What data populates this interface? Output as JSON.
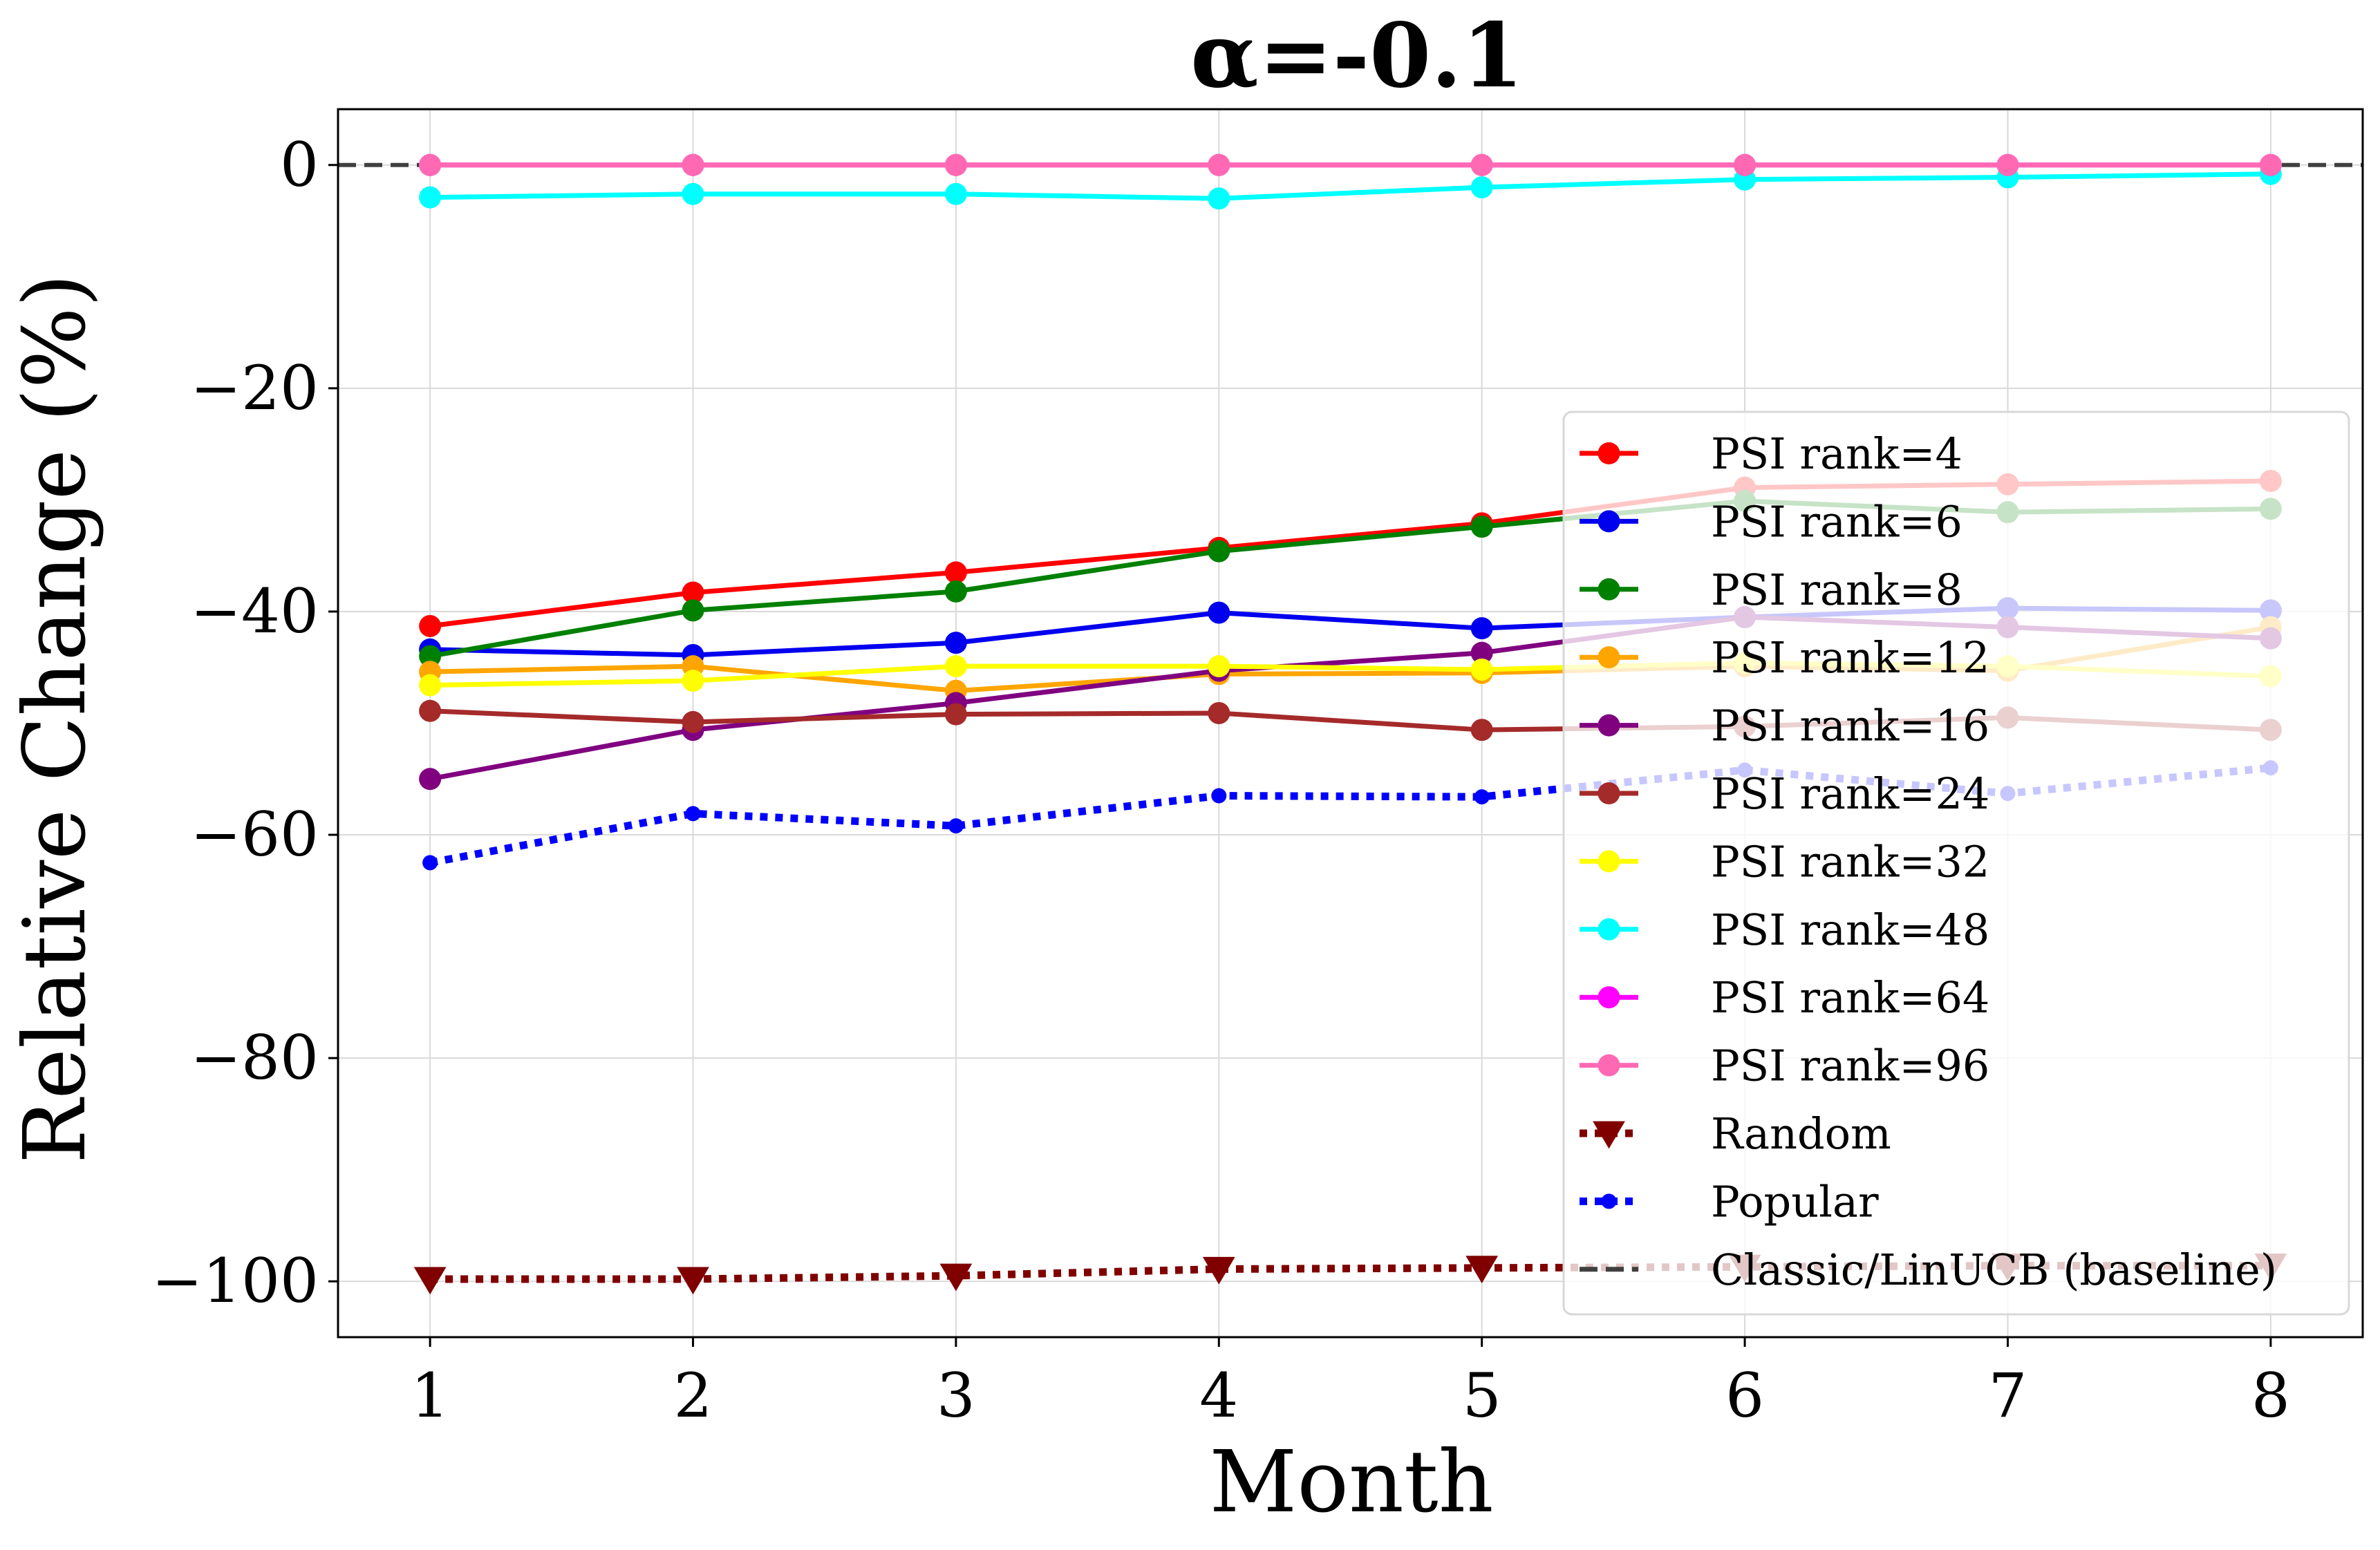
{
  "chart_data": {
    "type": "line",
    "title": "α=-0.1",
    "xlabel": "Month",
    "ylabel": "Relative Change (%)",
    "x": [
      1,
      2,
      3,
      4,
      5,
      6,
      7,
      8
    ],
    "xlim": [
      0.65,
      8.35
    ],
    "ylim": [
      -105,
      5
    ],
    "yticks": [
      0,
      -20,
      -40,
      -60,
      -80,
      -100
    ],
    "yticklabels": [
      "0",
      "−20",
      "−40",
      "−60",
      "−80",
      "−100"
    ],
    "grid": true,
    "legend_position": "lower-right",
    "series": [
      {
        "name": "PSI rank=4",
        "color": "#ff0000",
        "style": "solid",
        "marker": "circle",
        "values": [
          -41.3,
          -38.3,
          -36.5,
          -34.3,
          -32.1,
          -28.9,
          -28.6,
          -28.3
        ]
      },
      {
        "name": "PSI rank=6",
        "color": "#0000ee",
        "style": "solid",
        "marker": "circle",
        "values": [
          -43.4,
          -43.9,
          -42.8,
          -40.1,
          -41.5,
          -40.5,
          -39.7,
          -39.9
        ]
      },
      {
        "name": "PSI rank=8",
        "color": "#008000",
        "style": "solid",
        "marker": "circle",
        "values": [
          -44.0,
          -39.9,
          -38.2,
          -34.6,
          -32.4,
          -30.1,
          -31.1,
          -30.8
        ]
      },
      {
        "name": "PSI rank=12",
        "color": "#ffa500",
        "style": "solid",
        "marker": "circle",
        "values": [
          -45.4,
          -44.9,
          -47.1,
          -45.6,
          -45.5,
          -44.9,
          -45.3,
          -41.4
        ]
      },
      {
        "name": "PSI rank=16",
        "color": "#800080",
        "style": "solid",
        "marker": "circle",
        "values": [
          -55.0,
          -50.6,
          -48.2,
          -45.3,
          -43.7,
          -40.5,
          -41.4,
          -42.4
        ]
      },
      {
        "name": "PSI rank=24",
        "color": "#a52a2a",
        "style": "solid",
        "marker": "circle",
        "values": [
          -48.9,
          -49.9,
          -49.2,
          -49.1,
          -50.6,
          -50.3,
          -49.5,
          -50.6
        ]
      },
      {
        "name": "PSI rank=32",
        "color": "#ffff00",
        "style": "solid",
        "marker": "circle",
        "values": [
          -46.6,
          -46.2,
          -44.9,
          -44.9,
          -45.2,
          -44.6,
          -44.9,
          -45.8
        ]
      },
      {
        "name": "PSI rank=48",
        "color": "#00ffff",
        "style": "solid",
        "marker": "circle",
        "values": [
          -2.9,
          -2.6,
          -2.6,
          -3.0,
          -2.0,
          -1.3,
          -1.1,
          -0.8
        ]
      },
      {
        "name": "PSI rank=64",
        "color": "#ff00ff",
        "style": "solid",
        "marker": "circle",
        "values": [
          0,
          0,
          0,
          0,
          0,
          0,
          0,
          0
        ]
      },
      {
        "name": "PSI rank=96",
        "color": "#ff69b4",
        "style": "solid",
        "marker": "circle",
        "values": [
          0,
          0,
          0,
          0,
          0,
          0,
          0,
          0
        ]
      },
      {
        "name": "Random",
        "color": "#800000",
        "style": "dotted",
        "marker": "triangle",
        "values": [
          -99.8,
          -99.8,
          -99.5,
          -98.9,
          -98.8,
          -98.7,
          -98.6,
          -98.6
        ]
      },
      {
        "name": "Popular",
        "color": "#0000ff",
        "style": "dotted",
        "marker": "dot",
        "values": [
          -62.5,
          -58.1,
          -59.2,
          -56.5,
          -56.6,
          -54.2,
          -56.3,
          -54.0
        ]
      },
      {
        "name": "Classic/LinUCB (baseline)",
        "color": "#404040",
        "style": "dashed",
        "marker": "none",
        "values": [
          0,
          0,
          0,
          0,
          0,
          0,
          0,
          0
        ]
      }
    ]
  }
}
